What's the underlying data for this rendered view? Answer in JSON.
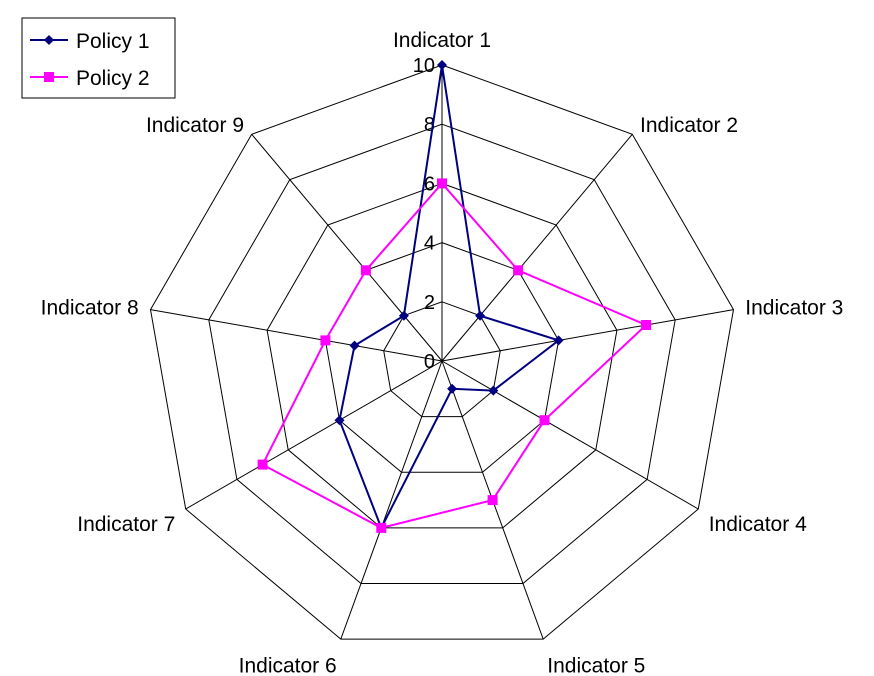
{
  "chart_data": {
    "type": "radar",
    "title": "",
    "categories": [
      "Indicator 1",
      "Indicator 2",
      "Indicator 3",
      "Indicator 4",
      "Indicator 5",
      "Indicator 6",
      "Indicator 7",
      "Indicator 8",
      "Indicator 9"
    ],
    "rlim": [
      0,
      10
    ],
    "ticks": [
      "0",
      "2",
      "4",
      "6",
      "8",
      "10"
    ],
    "grid": true,
    "legend_position": "top-left",
    "series": [
      {
        "name": "Policy 1",
        "color": "#000080",
        "marker": "diamond",
        "values": [
          10,
          2,
          4,
          2,
          1,
          6,
          4,
          3,
          2
        ]
      },
      {
        "name": "Policy 2",
        "color": "#FF00FF",
        "marker": "square",
        "values": [
          6,
          4,
          7,
          4,
          5,
          6,
          7,
          4,
          4
        ]
      }
    ]
  }
}
